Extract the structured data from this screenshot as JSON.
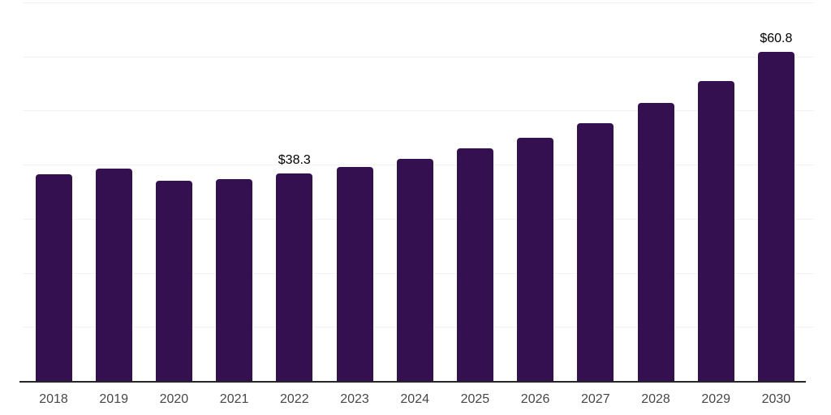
{
  "chart_data": {
    "type": "bar",
    "title": "",
    "xlabel": "",
    "ylabel": "",
    "categories": [
      "2018",
      "2019",
      "2020",
      "2021",
      "2022",
      "2023",
      "2024",
      "2025",
      "2026",
      "2027",
      "2028",
      "2029",
      "2030"
    ],
    "values": [
      38.2,
      39.2,
      37.0,
      37.4,
      38.3,
      39.5,
      41.0,
      43.0,
      45.0,
      47.7,
      51.4,
      55.5,
      60.8
    ],
    "point_labels": [
      "",
      "",
      "",
      "",
      "$38.3",
      "",
      "",
      "",
      "",
      "",
      "",
      "",
      "$60.8"
    ],
    "ylim": [
      0,
      70
    ],
    "grid_interval": 10,
    "grid": true,
    "y_tick_labels_shown": false,
    "legend_position": "none",
    "colors": {
      "bar": "#351050",
      "axis_line": "#262626",
      "gridline": "#f2f2f2",
      "tick_label": "#474747",
      "value_label": "#000000",
      "background": "#ffffff"
    }
  }
}
